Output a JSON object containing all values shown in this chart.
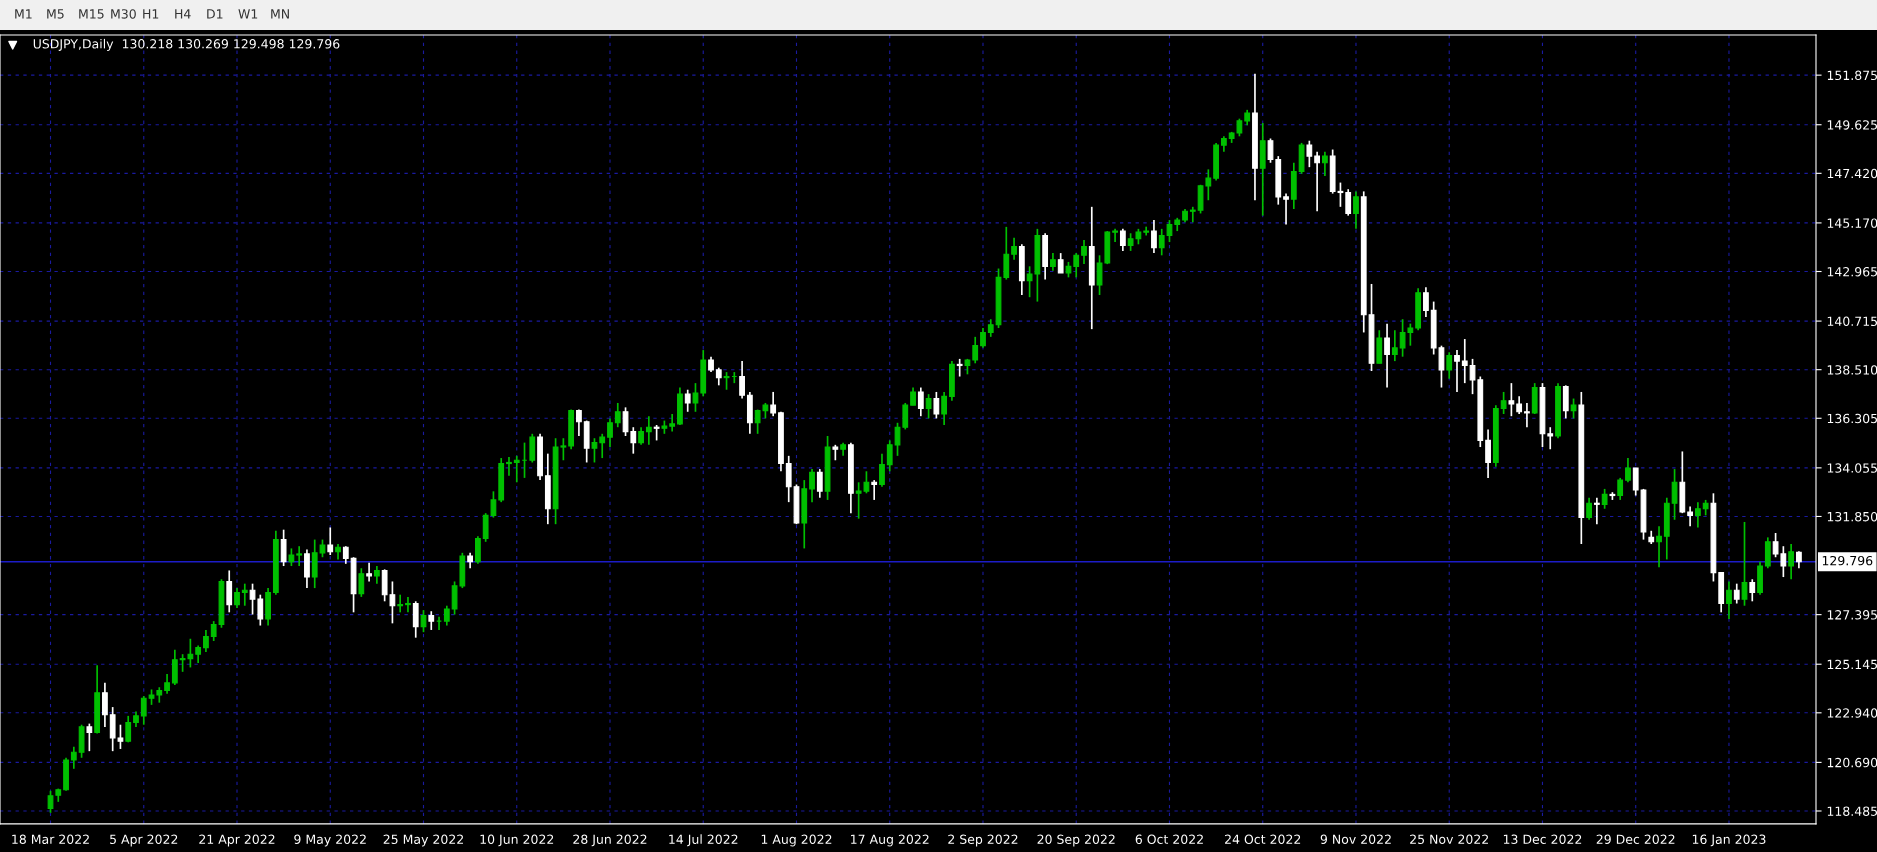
{
  "chart_data": {
    "type": "candlestick",
    "title": "USDJPY,Daily  130.218 130.269 129.498 129.796",
    "annotations": [
      "M1",
      "M5",
      "M15",
      "M30",
      "H1",
      "H4",
      "D1",
      "W1",
      "MN"
    ],
    "categories": [
      "18 Mar 2022",
      null,
      null,
      null,
      null,
      null,
      null,
      null,
      null,
      null,
      null,
      null,
      "5 Apr 2022",
      null,
      null,
      null,
      null,
      null,
      null,
      null,
      null,
      null,
      null,
      null,
      "21 Apr 2022",
      null,
      null,
      null,
      null,
      null,
      null,
      null,
      null,
      null,
      null,
      null,
      "9 May 2022",
      null,
      null,
      null,
      null,
      null,
      null,
      null,
      null,
      null,
      null,
      null,
      "25 May 2022",
      null,
      null,
      null,
      null,
      null,
      null,
      null,
      null,
      null,
      null,
      null,
      "10 Jun 2022",
      null,
      null,
      null,
      null,
      null,
      null,
      null,
      null,
      null,
      null,
      null,
      "28 Jun 2022",
      null,
      null,
      null,
      null,
      null,
      null,
      null,
      null,
      null,
      null,
      null,
      "14 Jul 2022",
      null,
      null,
      null,
      null,
      null,
      null,
      null,
      null,
      null,
      null,
      null,
      "1 Aug 2022",
      null,
      null,
      null,
      null,
      null,
      null,
      null,
      null,
      null,
      null,
      null,
      "17 Aug 2022",
      null,
      null,
      null,
      null,
      null,
      null,
      null,
      null,
      null,
      null,
      null,
      "2 Sep 2022",
      null,
      null,
      null,
      null,
      null,
      null,
      null,
      null,
      null,
      null,
      null,
      "20 Sep 2022",
      null,
      null,
      null,
      null,
      null,
      null,
      null,
      null,
      null,
      null,
      null,
      "6 Oct 2022",
      null,
      null,
      null,
      null,
      null,
      null,
      null,
      null,
      null,
      null,
      null,
      "24 Oct 2022",
      null,
      null,
      null,
      null,
      null,
      null,
      null,
      null,
      null,
      null,
      null,
      "9 Nov 2022",
      null,
      null,
      null,
      null,
      null,
      null,
      null,
      null,
      null,
      null,
      null,
      "25 Nov 2022",
      null,
      null,
      null,
      null,
      null,
      null,
      null,
      null,
      null,
      null,
      null,
      "13 Dec 2022",
      null,
      null,
      null,
      null,
      null,
      null,
      null,
      null,
      null,
      null,
      null,
      "29 Dec 2022",
      null,
      null,
      null,
      null,
      null,
      null,
      null,
      null,
      null,
      null,
      null,
      "16 Jan 2023",
      null,
      null,
      null,
      null,
      null,
      null,
      null,
      null,
      null
    ],
    "ohlc": [
      [
        118.6,
        119.4,
        118.4,
        119.17
      ],
      [
        119.2,
        119.5,
        118.9,
        119.45
      ],
      [
        119.45,
        120.9,
        119.4,
        120.8
      ],
      [
        120.8,
        121.4,
        120.4,
        121.15
      ],
      [
        121.15,
        122.4,
        120.9,
        122.3
      ],
      [
        122.3,
        122.45,
        121.2,
        122.05
      ],
      [
        122.05,
        125.1,
        122.0,
        123.85
      ],
      [
        123.85,
        124.3,
        122.3,
        122.85
      ],
      [
        122.85,
        123.2,
        121.2,
        121.8
      ],
      [
        121.8,
        122.4,
        121.3,
        121.65
      ],
      [
        121.65,
        122.8,
        121.6,
        122.5
      ],
      [
        122.5,
        123.0,
        122.3,
        122.8
      ],
      [
        122.8,
        123.7,
        122.4,
        123.6
      ],
      [
        123.6,
        124.0,
        123.3,
        123.75
      ],
      [
        123.75,
        124.1,
        123.4,
        123.95
      ],
      [
        123.95,
        124.7,
        123.8,
        124.3
      ],
      [
        124.3,
        125.8,
        124.2,
        125.35
      ],
      [
        125.35,
        125.6,
        124.8,
        125.4
      ],
      [
        125.4,
        126.3,
        125.0,
        125.6
      ],
      [
        125.6,
        126.0,
        125.2,
        125.9
      ],
      [
        125.9,
        126.7,
        125.7,
        126.4
      ],
      [
        126.4,
        127.1,
        126.2,
        126.95
      ],
      [
        126.95,
        129.0,
        126.8,
        128.9
      ],
      [
        128.9,
        129.4,
        127.5,
        127.85
      ],
      [
        127.85,
        128.6,
        127.7,
        128.4
      ],
      [
        128.4,
        128.8,
        127.8,
        128.5
      ],
      [
        128.5,
        128.8,
        127.4,
        128.1
      ],
      [
        128.1,
        128.3,
        126.9,
        127.2
      ],
      [
        127.2,
        128.6,
        126.9,
        128.4
      ],
      [
        128.4,
        131.2,
        128.3,
        130.8
      ],
      [
        130.8,
        131.25,
        129.6,
        129.8
      ],
      [
        129.8,
        130.4,
        129.6,
        130.1
      ],
      [
        130.1,
        130.5,
        129.6,
        130.15
      ],
      [
        130.15,
        130.35,
        128.6,
        129.1
      ],
      [
        129.1,
        130.8,
        128.6,
        130.2
      ],
      [
        130.2,
        130.8,
        130.0,
        130.55
      ],
      [
        130.55,
        131.35,
        130.1,
        130.25
      ],
      [
        130.25,
        130.6,
        129.9,
        130.45
      ],
      [
        130.45,
        130.5,
        129.7,
        129.95
      ],
      [
        129.95,
        130.0,
        127.5,
        128.35
      ],
      [
        128.35,
        129.5,
        128.2,
        129.25
      ],
      [
        129.25,
        129.75,
        128.9,
        129.15
      ],
      [
        129.15,
        129.6,
        128.8,
        129.4
      ],
      [
        129.4,
        129.45,
        128.0,
        128.3
      ],
      [
        128.3,
        128.9,
        127.0,
        127.8
      ],
      [
        127.8,
        128.3,
        127.5,
        127.85
      ],
      [
        127.85,
        128.2,
        127.5,
        127.9
      ],
      [
        127.9,
        128.0,
        126.35,
        126.85
      ],
      [
        126.85,
        127.6,
        126.6,
        127.35
      ],
      [
        127.35,
        127.55,
        126.7,
        127.1
      ],
      [
        127.1,
        127.3,
        126.7,
        127.1
      ],
      [
        127.1,
        127.8,
        126.9,
        127.65
      ],
      [
        127.65,
        128.9,
        127.4,
        128.7
      ],
      [
        128.7,
        130.2,
        128.6,
        130.05
      ],
      [
        130.05,
        130.2,
        129.5,
        129.8
      ],
      [
        129.8,
        130.95,
        129.7,
        130.85
      ],
      [
        130.85,
        132.0,
        130.7,
        131.9
      ],
      [
        131.9,
        132.99,
        131.8,
        132.6
      ],
      [
        132.6,
        134.5,
        132.5,
        134.25
      ],
      [
        134.25,
        134.55,
        133.7,
        134.3
      ],
      [
        134.3,
        134.6,
        133.4,
        134.4
      ],
      [
        134.4,
        135.2,
        133.6,
        134.4
      ],
      [
        134.4,
        135.6,
        134.3,
        135.45
      ],
      [
        135.45,
        135.6,
        133.5,
        133.7
      ],
      [
        133.7,
        134.7,
        131.5,
        132.2
      ],
      [
        132.2,
        135.4,
        131.5,
        135.0
      ],
      [
        135.0,
        135.4,
        134.4,
        135.05
      ],
      [
        135.05,
        136.7,
        134.9,
        136.65
      ],
      [
        136.65,
        136.7,
        135.5,
        136.15
      ],
      [
        136.15,
        136.2,
        134.3,
        134.95
      ],
      [
        134.95,
        135.4,
        134.3,
        135.2
      ],
      [
        135.2,
        135.6,
        134.5,
        135.45
      ],
      [
        135.45,
        136.3,
        135.0,
        136.1
      ],
      [
        136.1,
        137.0,
        135.9,
        136.6
      ],
      [
        136.6,
        136.8,
        135.5,
        135.7
      ],
      [
        135.7,
        135.9,
        134.7,
        135.2
      ],
      [
        135.2,
        135.9,
        135.1,
        135.7
      ],
      [
        135.7,
        136.4,
        135.1,
        135.9
      ],
      [
        135.9,
        136.0,
        135.3,
        135.85
      ],
      [
        135.85,
        136.2,
        135.6,
        135.95
      ],
      [
        135.95,
        136.5,
        135.7,
        136.05
      ],
      [
        136.05,
        137.7,
        136.0,
        137.4
      ],
      [
        137.4,
        137.6,
        136.6,
        137.0
      ],
      [
        137.0,
        137.9,
        136.6,
        137.45
      ],
      [
        137.45,
        139.4,
        137.3,
        138.95
      ],
      [
        138.95,
        139.1,
        138.4,
        138.5
      ],
      [
        138.5,
        138.6,
        137.8,
        138.15
      ],
      [
        138.15,
        138.4,
        137.6,
        138.2
      ],
      [
        138.2,
        138.4,
        137.9,
        138.2
      ],
      [
        138.2,
        138.9,
        137.2,
        137.35
      ],
      [
        137.35,
        137.5,
        135.6,
        136.1
      ],
      [
        136.1,
        136.7,
        135.6,
        136.65
      ],
      [
        136.65,
        137.0,
        136.3,
        136.9
      ],
      [
        136.9,
        137.5,
        136.4,
        136.55
      ],
      [
        136.55,
        136.6,
        133.9,
        134.25
      ],
      [
        134.25,
        134.6,
        132.5,
        133.2
      ],
      [
        133.2,
        133.3,
        131.5,
        131.55
      ],
      [
        131.55,
        133.5,
        130.4,
        133.1
      ],
      [
        133.1,
        134.0,
        132.5,
        133.85
      ],
      [
        133.85,
        134.0,
        132.7,
        133.0
      ],
      [
        133.0,
        135.5,
        132.6,
        135.0
      ],
      [
        135.0,
        135.1,
        134.4,
        134.9
      ],
      [
        134.9,
        135.2,
        134.6,
        135.1
      ],
      [
        135.1,
        135.2,
        132.0,
        132.9
      ],
      [
        132.9,
        133.4,
        131.75,
        133.0
      ],
      [
        133.0,
        133.9,
        132.9,
        133.4
      ],
      [
        133.4,
        133.5,
        132.6,
        133.3
      ],
      [
        133.3,
        134.7,
        133.2,
        134.2
      ],
      [
        134.2,
        135.3,
        133.9,
        135.1
      ],
      [
        135.1,
        136.1,
        134.6,
        135.9
      ],
      [
        135.9,
        137.0,
        135.8,
        136.9
      ],
      [
        136.9,
        137.7,
        136.9,
        137.5
      ],
      [
        137.5,
        137.7,
        136.4,
        136.75
      ],
      [
        136.75,
        137.4,
        136.3,
        137.2
      ],
      [
        137.2,
        137.5,
        136.3,
        136.5
      ],
      [
        136.5,
        137.5,
        136.0,
        137.3
      ],
      [
        137.3,
        138.9,
        137.1,
        138.75
      ],
      [
        138.75,
        139.0,
        138.2,
        138.7
      ],
      [
        138.7,
        139.0,
        138.3,
        138.95
      ],
      [
        138.95,
        140.0,
        138.8,
        139.6
      ],
      [
        139.6,
        140.4,
        139.5,
        140.2
      ],
      [
        140.2,
        140.8,
        140.0,
        140.55
      ],
      [
        140.55,
        143.1,
        140.4,
        142.7
      ],
      [
        142.7,
        144.99,
        142.6,
        143.75
      ],
      [
        143.75,
        144.5,
        143.5,
        144.1
      ],
      [
        144.1,
        144.2,
        141.9,
        142.55
      ],
      [
        142.55,
        143.2,
        141.8,
        142.85
      ],
      [
        142.85,
        144.9,
        141.6,
        144.6
      ],
      [
        144.6,
        144.7,
        142.6,
        143.2
      ],
      [
        143.2,
        143.8,
        143.0,
        143.5
      ],
      [
        143.5,
        143.8,
        142.9,
        142.9
      ],
      [
        142.9,
        143.4,
        142.7,
        143.2
      ],
      [
        143.2,
        143.8,
        142.7,
        143.7
      ],
      [
        143.7,
        144.4,
        143.3,
        144.1
      ],
      [
        144.1,
        145.9,
        140.35,
        142.35
      ],
      [
        142.35,
        143.7,
        141.9,
        143.35
      ],
      [
        143.35,
        144.8,
        143.3,
        144.75
      ],
      [
        144.75,
        144.9,
        144.3,
        144.8
      ],
      [
        144.8,
        144.9,
        143.9,
        144.15
      ],
      [
        144.15,
        144.7,
        143.9,
        144.45
      ],
      [
        144.45,
        144.9,
        144.2,
        144.75
      ],
      [
        144.75,
        145.0,
        144.6,
        144.8
      ],
      [
        144.8,
        145.3,
        143.8,
        144.05
      ],
      [
        144.05,
        144.9,
        143.7,
        144.6
      ],
      [
        144.6,
        145.3,
        144.3,
        145.1
      ],
      [
        145.1,
        145.4,
        144.8,
        145.3
      ],
      [
        145.3,
        145.8,
        145.2,
        145.7
      ],
      [
        145.7,
        145.9,
        145.2,
        145.75
      ],
      [
        145.75,
        146.9,
        145.6,
        146.85
      ],
      [
        146.85,
        147.6,
        146.2,
        147.2
      ],
      [
        147.2,
        148.8,
        147.1,
        148.7
      ],
      [
        148.7,
        149.1,
        148.4,
        149.0
      ],
      [
        149.0,
        149.3,
        148.8,
        149.25
      ],
      [
        149.25,
        149.9,
        149.1,
        149.8
      ],
      [
        149.8,
        150.3,
        149.6,
        150.15
      ],
      [
        150.15,
        151.94,
        146.2,
        147.65
      ],
      [
        147.65,
        149.7,
        145.5,
        148.9
      ],
      [
        148.9,
        149.0,
        147.9,
        148.05
      ],
      [
        148.05,
        148.2,
        146.0,
        146.35
      ],
      [
        146.35,
        146.5,
        145.1,
        146.25
      ],
      [
        146.25,
        147.9,
        145.8,
        147.5
      ],
      [
        147.5,
        148.8,
        147.4,
        148.7
      ],
      [
        148.7,
        148.9,
        147.7,
        148.2
      ],
      [
        148.2,
        148.4,
        145.7,
        147.9
      ],
      [
        147.9,
        148.4,
        147.3,
        148.2
      ],
      [
        148.2,
        148.5,
        146.5,
        146.6
      ],
      [
        146.6,
        147.0,
        145.9,
        146.55
      ],
      [
        146.55,
        146.7,
        145.5,
        145.6
      ],
      [
        145.6,
        146.6,
        144.9,
        146.35
      ],
      [
        146.35,
        146.6,
        140.2,
        141.0
      ],
      [
        141.0,
        142.4,
        138.45,
        138.8
      ],
      [
        138.8,
        140.3,
        138.8,
        139.95
      ],
      [
        139.95,
        140.6,
        137.7,
        139.2
      ],
      [
        139.2,
        140.3,
        138.9,
        139.5
      ],
      [
        139.5,
        140.8,
        139.1,
        140.2
      ],
      [
        140.2,
        140.6,
        139.6,
        140.4
      ],
      [
        140.4,
        142.2,
        140.3,
        142.0
      ],
      [
        142.0,
        142.25,
        140.9,
        141.2
      ],
      [
        141.2,
        141.6,
        139.2,
        139.5
      ],
      [
        139.5,
        139.6,
        137.7,
        138.5
      ],
      [
        138.5,
        139.3,
        138.1,
        139.15
      ],
      [
        139.15,
        139.4,
        137.5,
        138.9
      ],
      [
        138.9,
        139.9,
        137.9,
        138.7
      ],
      [
        138.7,
        139.0,
        137.4,
        138.05
      ],
      [
        138.05,
        138.2,
        135.0,
        135.3
      ],
      [
        135.3,
        135.8,
        133.6,
        134.3
      ],
      [
        134.3,
        136.9,
        134.1,
        136.75
      ],
      [
        136.75,
        137.5,
        136.5,
        137.1
      ],
      [
        137.1,
        137.9,
        136.4,
        136.95
      ],
      [
        136.95,
        137.3,
        136.5,
        136.6
      ],
      [
        136.6,
        137.0,
        135.9,
        136.55
      ],
      [
        136.55,
        137.9,
        136.5,
        137.7
      ],
      [
        137.7,
        137.9,
        135.0,
        135.6
      ],
      [
        135.6,
        135.9,
        134.9,
        135.5
      ],
      [
        135.5,
        137.9,
        135.4,
        137.75
      ],
      [
        137.75,
        137.8,
        136.3,
        136.65
      ],
      [
        136.65,
        137.2,
        136.3,
        136.9
      ],
      [
        136.9,
        137.5,
        130.6,
        131.8
      ],
      [
        131.8,
        132.7,
        131.7,
        132.45
      ],
      [
        132.45,
        132.7,
        131.5,
        132.4
      ],
      [
        132.4,
        133.1,
        132.2,
        132.85
      ],
      [
        132.85,
        132.95,
        132.6,
        132.8
      ],
      [
        132.8,
        133.6,
        132.6,
        133.5
      ],
      [
        133.5,
        134.5,
        133.4,
        134.05
      ],
      [
        134.05,
        134.05,
        132.8,
        133.05
      ],
      [
        133.05,
        133.1,
        130.8,
        131.15
      ],
      [
        130.9,
        131.2,
        130.6,
        130.7
      ],
      [
        130.7,
        131.4,
        129.55,
        130.95
      ],
      [
        130.95,
        132.7,
        129.9,
        132.45
      ],
      [
        132.45,
        134.0,
        131.7,
        133.4
      ],
      [
        133.4,
        134.8,
        132.0,
        132.05
      ],
      [
        132.05,
        132.3,
        131.4,
        131.9
      ],
      [
        131.9,
        132.5,
        131.35,
        132.2
      ],
      [
        132.2,
        132.6,
        131.9,
        132.45
      ],
      [
        132.45,
        132.9,
        128.9,
        129.3
      ],
      [
        129.3,
        129.3,
        127.5,
        127.9
      ],
      [
        127.9,
        128.9,
        127.2,
        128.5
      ],
      [
        128.5,
        128.8,
        127.9,
        128.1
      ],
      [
        128.1,
        131.6,
        127.8,
        128.85
      ],
      [
        128.85,
        129.0,
        128.0,
        128.4
      ],
      [
        128.4,
        129.8,
        128.3,
        129.6
      ],
      [
        129.6,
        130.9,
        129.5,
        130.7
      ],
      [
        130.7,
        131.1,
        130.0,
        130.15
      ],
      [
        130.15,
        130.5,
        129.1,
        129.6
      ],
      [
        129.6,
        130.6,
        129.0,
        130.25
      ],
      [
        130.218,
        130.269,
        129.498,
        129.796
      ]
    ],
    "ylim": [
      117.9,
      153.7
    ],
    "yticks": [
      {
        "value": 118.485,
        "label": "118.485"
      },
      {
        "value": 120.69,
        "label": "120.690"
      },
      {
        "value": 122.94,
        "label": "122.940"
      },
      {
        "value": 125.145,
        "label": "125.145"
      },
      {
        "value": 127.395,
        "label": "127.395"
      },
      {
        "value": 131.85,
        "label": "131.850"
      },
      {
        "value": 134.055,
        "label": "134.055"
      },
      {
        "value": 136.305,
        "label": "136.305"
      },
      {
        "value": 138.51,
        "label": "138.510"
      },
      {
        "value": 140.715,
        "label": "140.715"
      },
      {
        "value": 142.965,
        "label": "142.965"
      },
      {
        "value": 145.17,
        "label": "145.170"
      },
      {
        "value": 147.42,
        "label": "147.420"
      },
      {
        "value": 149.625,
        "label": "149.625"
      },
      {
        "value": 151.875,
        "label": "151.875"
      }
    ],
    "grid": true,
    "ref_lines": [
      {
        "axis": "y",
        "value": 129.796,
        "label": "129.796",
        "color": "#1c1cc8"
      }
    ]
  }
}
